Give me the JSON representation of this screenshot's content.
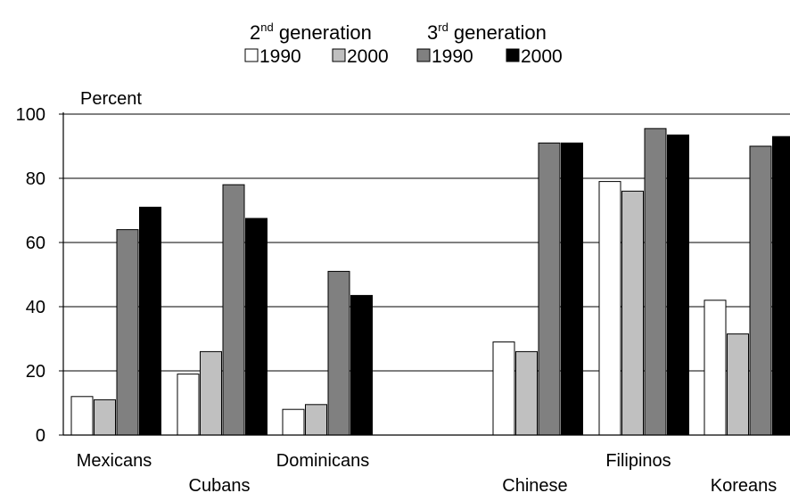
{
  "chart_data": {
    "type": "bar",
    "header": {
      "groups": [
        {
          "base": "2",
          "sup": "nd",
          "rest": " generation"
        },
        {
          "base": "3",
          "sup": "rd",
          "rest": " generation"
        }
      ]
    },
    "legend": {
      "placement": "top-center",
      "entries": [
        {
          "label": "1990",
          "color": "#ffffff"
        },
        {
          "label": "2000",
          "color": "#c0c0c0"
        },
        {
          "label": "1990",
          "color": "#808080"
        },
        {
          "label": "2000",
          "color": "#000000"
        }
      ]
    },
    "ylabel": "Percent",
    "ylim": [
      0,
      100
    ],
    "yticks": [
      0,
      20,
      40,
      60,
      80,
      100
    ],
    "grid": true,
    "categories": [
      "Mexicans",
      "Cubans",
      "Dominicans",
      "Chinese",
      "Filipinos",
      "Koreans"
    ],
    "series": [
      {
        "name": "1990",
        "color": "#ffffff",
        "values": [
          12,
          19,
          8,
          29,
          79,
          42
        ]
      },
      {
        "name": "2000",
        "color": "#c0c0c0",
        "values": [
          11,
          26,
          9.5,
          26,
          76,
          31.5
        ]
      },
      {
        "name": "1990",
        "color": "#808080",
        "values": [
          64,
          78,
          51,
          91,
          95.5,
          90
        ]
      },
      {
        "name": "2000",
        "color": "#000000",
        "values": [
          71,
          67.5,
          43.5,
          91,
          93.5,
          93
        ]
      }
    ]
  }
}
